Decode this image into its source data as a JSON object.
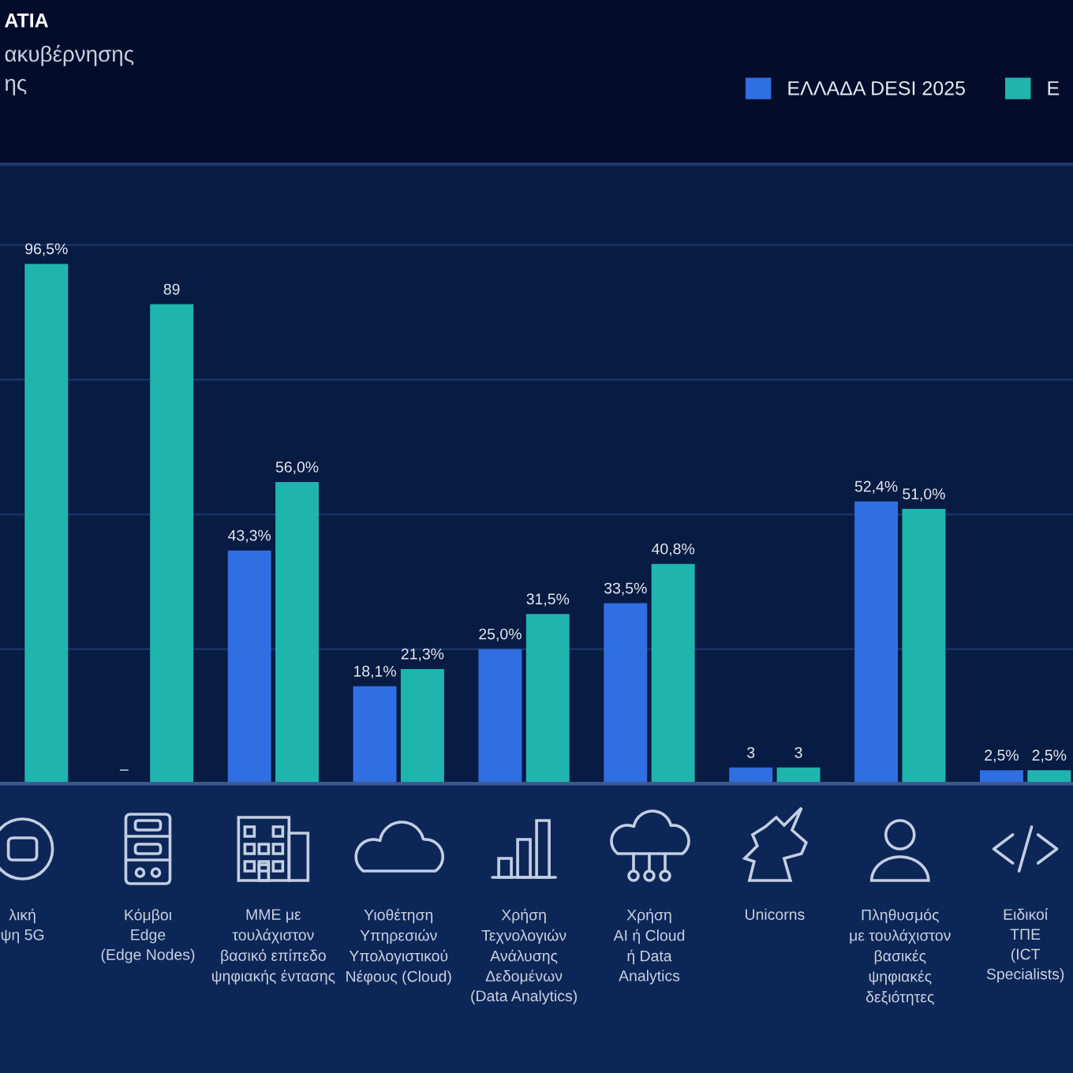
{
  "chart_data": {
    "type": "bar",
    "title": "ΑΤΙΑ",
    "subtitle": "ακυβέρνησης\nης",
    "categories": [
      "λική\nψη 5G",
      "Κόμβοι\nEdge\n(Edge Nodes)",
      "ΜΜΕ με\nτουλάχιστον\nβασικό επίπεδο\nψηφιακής έντασης",
      "Υιοθέτηση\nΥπηρεσιών\nΥπολογιστικού\nΝέφους (Cloud)",
      "Χρήση\nΤεχνολογιών\nΑνάλυσης\nΔεδομένων\n(Data Analytics)",
      "Χρήση\nAI ή Cloud\nή Data\nAnalytics",
      "Unicorns",
      "Πληθυσμός\nμε τουλάχιστον\nβασικές\nψηφιακές\nδεξιότητες",
      "Ειδικοί\nΤΠΕ\n(ICT\nSpecialists)"
    ],
    "series": [
      {
        "name": "ΕΛΛΑΔΑ DESI 2025",
        "color": "#2f6fe2",
        "values": [
          null,
          null,
          43.3,
          18.1,
          25.0,
          33.5,
          3,
          52.4,
          2.5
        ],
        "value_labels": [
          null,
          "–",
          "43,3%",
          "18,1%",
          "25,0%",
          "33,5%",
          "3",
          "52,4%",
          "2,5%"
        ]
      },
      {
        "name": "Ε",
        "color": "#1fb5ad",
        "values": [
          96.5,
          89,
          56.0,
          21.3,
          31.5,
          40.8,
          3,
          51.0,
          2.5
        ],
        "value_labels": [
          "96,5%",
          "89",
          "56,0%",
          "21,3%",
          "31,5%",
          "40,8%",
          "3",
          "51,0%",
          "2,5%"
        ]
      }
    ],
    "ylim": [
      0,
      115
    ],
    "yticks": [
      {
        "value": 25,
        "label": null
      },
      {
        "value": 50,
        "label": null
      },
      {
        "value": 75,
        "label": null
      },
      {
        "value": 100,
        "label": null
      }
    ],
    "grid": "y",
    "legend": "top right",
    "tick_labels": "x"
  }
}
